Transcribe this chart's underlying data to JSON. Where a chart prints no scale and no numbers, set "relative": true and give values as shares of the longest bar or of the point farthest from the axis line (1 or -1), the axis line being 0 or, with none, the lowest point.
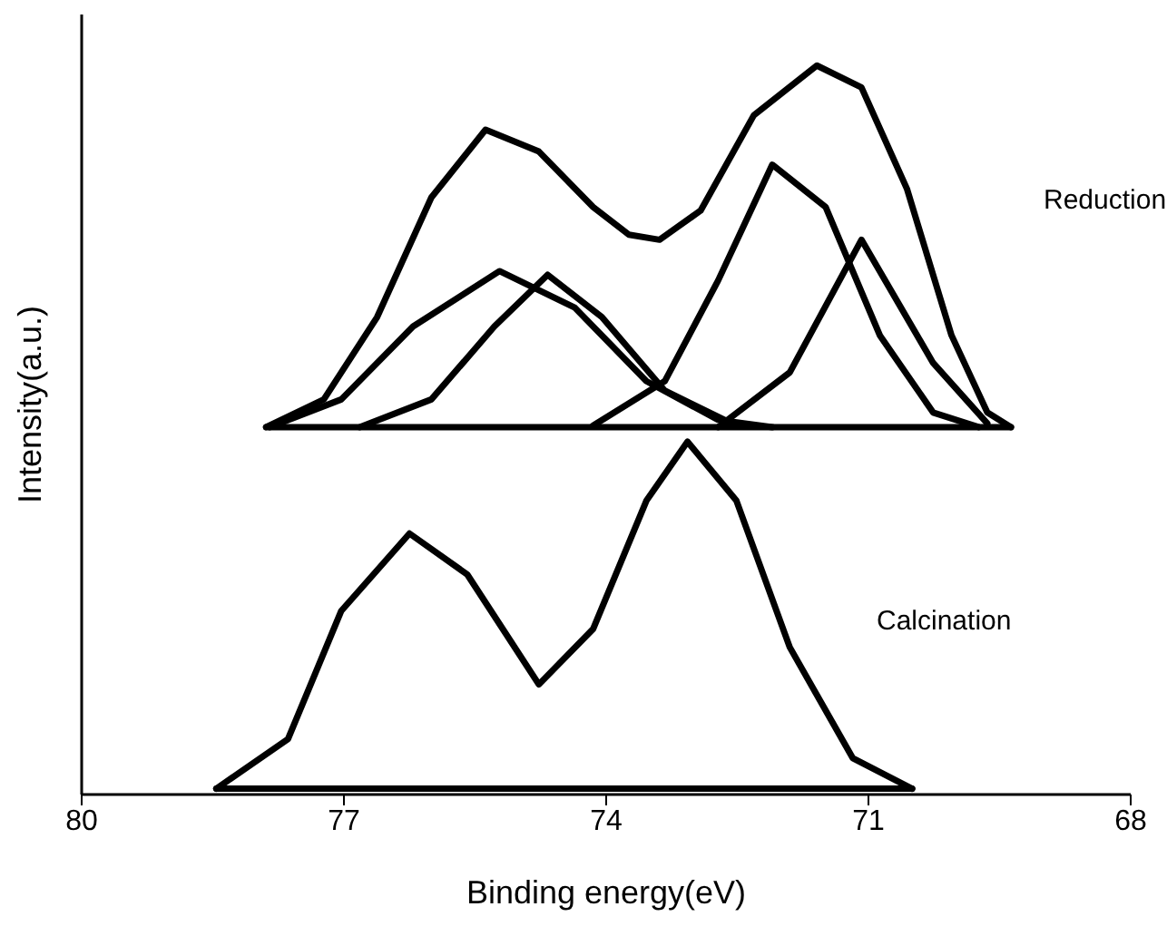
{
  "chart_data": {
    "type": "line",
    "relative": true,
    "xlabel": "Binding energy(eV)",
    "ylabel": "Intensity(a.u.)",
    "xlim": [
      80,
      68
    ],
    "xticks": [
      80,
      77,
      74,
      71,
      68
    ],
    "marker": "none",
    "line_style": "solid",
    "annotations": [
      "Reduction",
      "Calcination"
    ],
    "series": [
      {
        "color": "#000000",
        "x": [
          77.89,
          77.23,
          76.62,
          76.0,
          75.38,
          74.77,
          74.15,
          73.74,
          73.39,
          72.92,
          72.31,
          71.59,
          71.08,
          70.56,
          70.05,
          69.64,
          69.37
        ],
        "values": [
          0.504,
          0.542,
          0.655,
          0.819,
          0.912,
          0.882,
          0.806,
          0.768,
          0.761,
          0.801,
          0.932,
          1,
          0.97,
          0.831,
          0.63,
          0.524,
          0.504
        ]
      },
      {
        "color": "#000000",
        "x": [
          77.85,
          77.03,
          76.21,
          75.22,
          74.36,
          73.54,
          72.72,
          72.1
        ],
        "values": [
          0.504,
          0.542,
          0.642,
          0.718,
          0.668,
          0.567,
          0.514,
          0.504
        ]
      },
      {
        "color": "#000000",
        "x": [
          76.82,
          76.0,
          75.28,
          74.67,
          74.05,
          73.33,
          72.51
        ],
        "values": [
          0.504,
          0.542,
          0.642,
          0.713,
          0.655,
          0.554,
          0.506
        ]
      },
      {
        "color": "#000000",
        "x": [
          74.15,
          73.33,
          72.72,
          72.1,
          71.49,
          70.87,
          70.26,
          69.74
        ],
        "values": [
          0.506,
          0.567,
          0.705,
          0.864,
          0.806,
          0.63,
          0.524,
          0.504
        ]
      },
      {
        "color": "#000000",
        "x": [
          72.72,
          71.9,
          71.08,
          70.26,
          69.64
        ],
        "values": [
          0.504,
          0.579,
          0.761,
          0.592,
          0.509
        ]
      },
      {
        "color": "#000000",
        "x": [
          77.89,
          69.37
        ],
        "values": [
          0.504,
          0.504
        ]
      },
      {
        "color": "#000000",
        "x": [
          78.46,
          77.64,
          77.03,
          76.25,
          75.59,
          74.77,
          74.15,
          73.54,
          73.07,
          72.51,
          71.9,
          71.18,
          70.5
        ],
        "values": [
          0.008,
          0.076,
          0.252,
          0.358,
          0.302,
          0.151,
          0.227,
          0.403,
          0.484,
          0.403,
          0.202,
          0.05,
          0.008
        ]
      },
      {
        "color": "#000000",
        "x": [
          78.46,
          70.5
        ],
        "values": [
          0.008,
          0.008
        ]
      }
    ]
  }
}
